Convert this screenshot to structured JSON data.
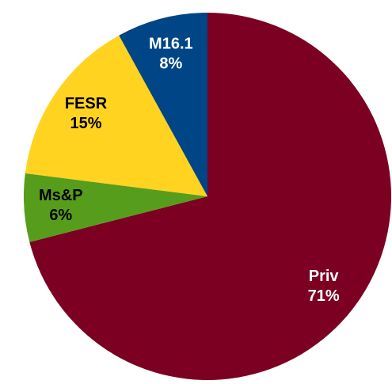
{
  "chart_data": {
    "type": "pie",
    "categories": [
      "Priv",
      "Ms&P",
      "FESR",
      "M16.1"
    ],
    "values": [
      71,
      6,
      15,
      8
    ],
    "value_labels": [
      "71%",
      "6%",
      "15%",
      "8%"
    ],
    "colors": [
      "#7b0022",
      "#579d1c",
      "#ffd320",
      "#004586"
    ],
    "label_colors": [
      "#ffffff",
      "#000000",
      "#000000",
      "#ffffff"
    ]
  }
}
